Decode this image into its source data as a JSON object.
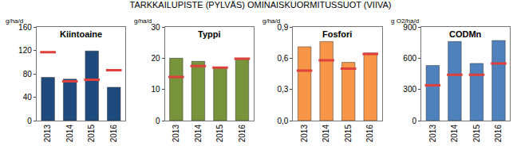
{
  "title": "TARKKAILUPISTE (PYLVÄS) OMINAISKUORMITUSSUOT (VIIVA)",
  "chart_data": [
    {
      "type": "bar",
      "title": "Kiintoaine",
      "y_label": "g/ha/d",
      "categories": [
        "2013",
        "2014",
        "2015",
        "2016"
      ],
      "series": [
        {
          "type": "bar",
          "color": "#1f4a7d",
          "values": [
            74,
            71,
            119,
            57
          ]
        },
        {
          "type": "scatter",
          "marker": "dash",
          "color": "#e0403b",
          "values": [
            117,
            67,
            70,
            86
          ]
        }
      ],
      "ylim": [
        0,
        160
      ],
      "yticks": [
        0,
        40,
        80,
        120,
        160
      ],
      "grid": false
    },
    {
      "type": "bar",
      "title": "Typpi",
      "y_label": "g/ha/d",
      "categories": [
        "2013",
        "2014",
        "2015",
        "2016"
      ],
      "series": [
        {
          "type": "bar",
          "color": "#77933c",
          "values": [
            20,
            19,
            17,
            20
          ]
        },
        {
          "type": "scatter",
          "marker": "dash",
          "color": "#e0403b",
          "values": [
            14,
            17.5,
            17,
            19.8
          ]
        }
      ],
      "ylim": [
        0,
        30
      ],
      "yticks": [
        0,
        10,
        20,
        30
      ],
      "grid": false
    },
    {
      "type": "bar",
      "title": "Fosfori",
      "y_label": "g/ha/d",
      "categories": [
        "2013",
        "2014",
        "2015",
        "2016"
      ],
      "series": [
        {
          "type": "bar",
          "color": "#f79646",
          "values": [
            0.71,
            0.76,
            0.56,
            0.65
          ]
        },
        {
          "type": "scatter",
          "marker": "dash",
          "color": "#e0403b",
          "values": [
            0.48,
            0.58,
            0.5,
            0.64
          ]
        }
      ],
      "ylim": [
        0,
        0.9
      ],
      "yticks": [
        {
          "value": 0,
          "label": "0,0"
        },
        {
          "value": 0.3,
          "label": "0,3"
        },
        {
          "value": 0.6,
          "label": "0,6"
        },
        {
          "value": 0.9,
          "label": "0,9"
        }
      ],
      "grid": false
    },
    {
      "type": "bar",
      "title": "CODMn",
      "y_label": "g O2/ha/d",
      "categories": [
        "2013",
        "2014",
        "2015",
        "2016"
      ],
      "series": [
        {
          "type": "bar",
          "color": "#4f81bd",
          "values": [
            530,
            760,
            550,
            770
          ]
        },
        {
          "type": "scatter",
          "marker": "dash",
          "color": "#e0403b",
          "values": [
            340,
            440,
            440,
            550
          ]
        }
      ],
      "ylim": [
        0,
        900
      ],
      "yticks": [
        0,
        300,
        600,
        900
      ],
      "grid": false
    }
  ]
}
